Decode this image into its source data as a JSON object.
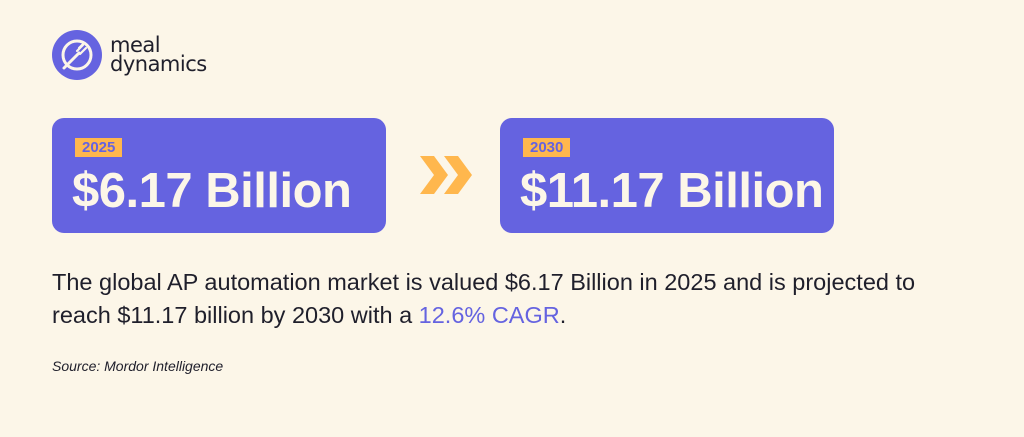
{
  "logo": {
    "line1": "meal",
    "line2": "dynamics",
    "brand_color": "#6563e0"
  },
  "stats": [
    {
      "year": "2025",
      "value": "$6.17 Billion"
    },
    {
      "year": "2030",
      "value": "$11.17 Billion"
    }
  ],
  "arrow_icon": "double-chevron-right",
  "colors": {
    "background": "#fcf6e8",
    "primary": "#6563e0",
    "accent": "#ffb74d"
  },
  "description": {
    "text_before": "The global AP automation market is valued $6.17 Billion in 2025 and is projected to reach $11.17 billion by 2030 with a ",
    "highlight": "12.6% CAGR",
    "text_after": "."
  },
  "source": "Source: Mordor Intelligence"
}
